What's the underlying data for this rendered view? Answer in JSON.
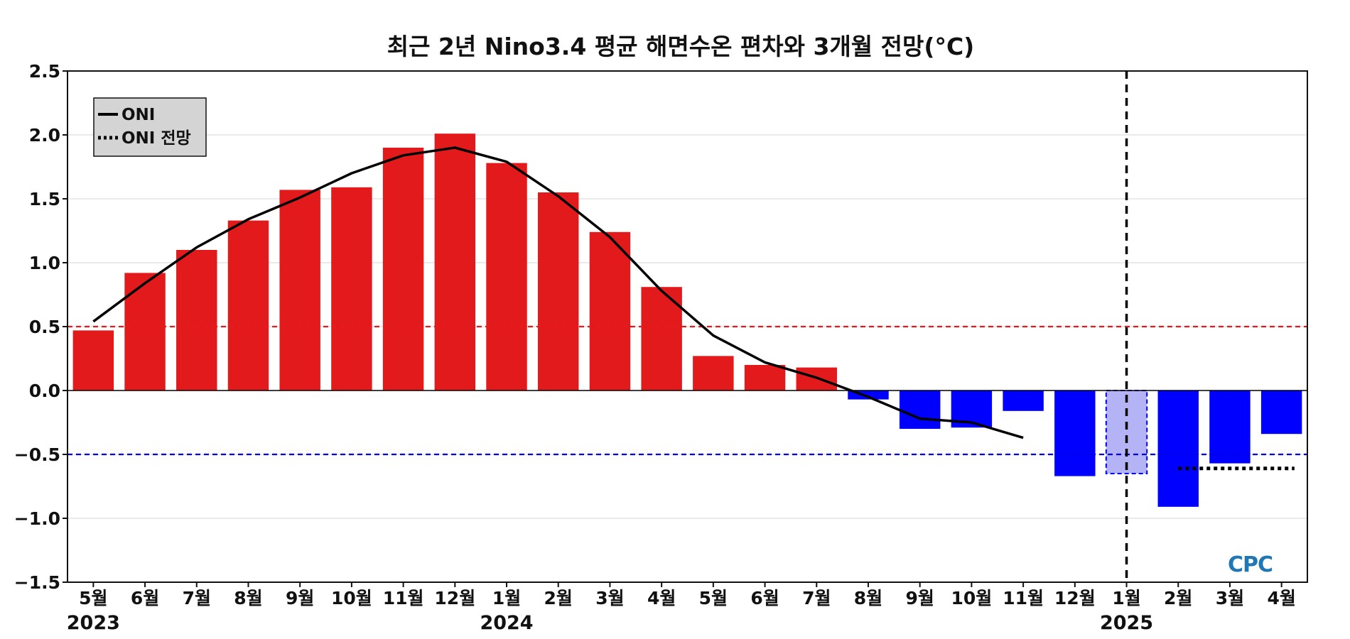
{
  "chart_data": {
    "type": "bar",
    "title": "최근 2년 Nino3.4 평균 해면수온 편차와 3개월 전망(°C)",
    "xlabel": "",
    "ylabel": "",
    "ylim": [
      -1.5,
      2.5
    ],
    "yticks": [
      2.5,
      2.0,
      1.5,
      1.0,
      0.5,
      0.0,
      -0.5,
      -1.0,
      -1.5
    ],
    "ytick_labels": [
      "2.5",
      "2.0",
      "1.5",
      "1.0",
      "0.5",
      "0.0",
      "−0.5",
      "−1.0",
      "−1.5"
    ],
    "categories": [
      "5월",
      "6월",
      "7월",
      "8월",
      "9월",
      "10월",
      "11월",
      "12월",
      "1월",
      "2월",
      "3월",
      "4월",
      "5월",
      "6월",
      "7월",
      "8월",
      "9월",
      "10월",
      "11월",
      "12월",
      "1월",
      "2월",
      "3월",
      "4월"
    ],
    "year_labels": [
      {
        "label": "2023",
        "index": 0
      },
      {
        "label": "2024",
        "index": 8
      },
      {
        "label": "2025",
        "index": 20
      }
    ],
    "monthly_anomaly": [
      0.47,
      0.92,
      1.1,
      1.33,
      1.57,
      1.59,
      1.9,
      2.01,
      1.78,
      1.55,
      1.24,
      0.81,
      0.27,
      0.2,
      0.18,
      -0.07,
      -0.3,
      -0.29,
      -0.16,
      -0.67,
      -0.65,
      -0.91,
      -0.57,
      -0.34
    ],
    "forecast_index": 20,
    "oni": {
      "name": "ONI",
      "values": [
        0.54,
        0.84,
        1.12,
        1.34,
        1.51,
        1.7,
        1.84,
        1.9,
        1.79,
        1.52,
        1.2,
        0.78,
        0.43,
        0.22,
        0.1,
        -0.05,
        -0.22,
        -0.25,
        -0.37
      ]
    },
    "oni_forecast": {
      "name": "ONI 전망",
      "start_index": 21,
      "end_index": 23,
      "value": -0.61
    },
    "reference_lines": [
      {
        "value": 0.5,
        "color": "#e8191c",
        "style": "dashed"
      },
      {
        "value": -0.5,
        "color": "#0000e6",
        "style": "dashed"
      }
    ],
    "current_marker_index": 20,
    "legend": {
      "position": "top-left",
      "entries": [
        {
          "label": "ONI",
          "style": "solid"
        },
        {
          "label": "ONI 전망",
          "style": "dotted"
        }
      ]
    },
    "colors": {
      "positive": "#e31a1c",
      "negative": "#0000ff",
      "forecast_fill": "#b3b3f5",
      "forecast_edge": "#0000ff",
      "line": "#000000",
      "grid": "#dddddd"
    },
    "logo": "CPC"
  }
}
